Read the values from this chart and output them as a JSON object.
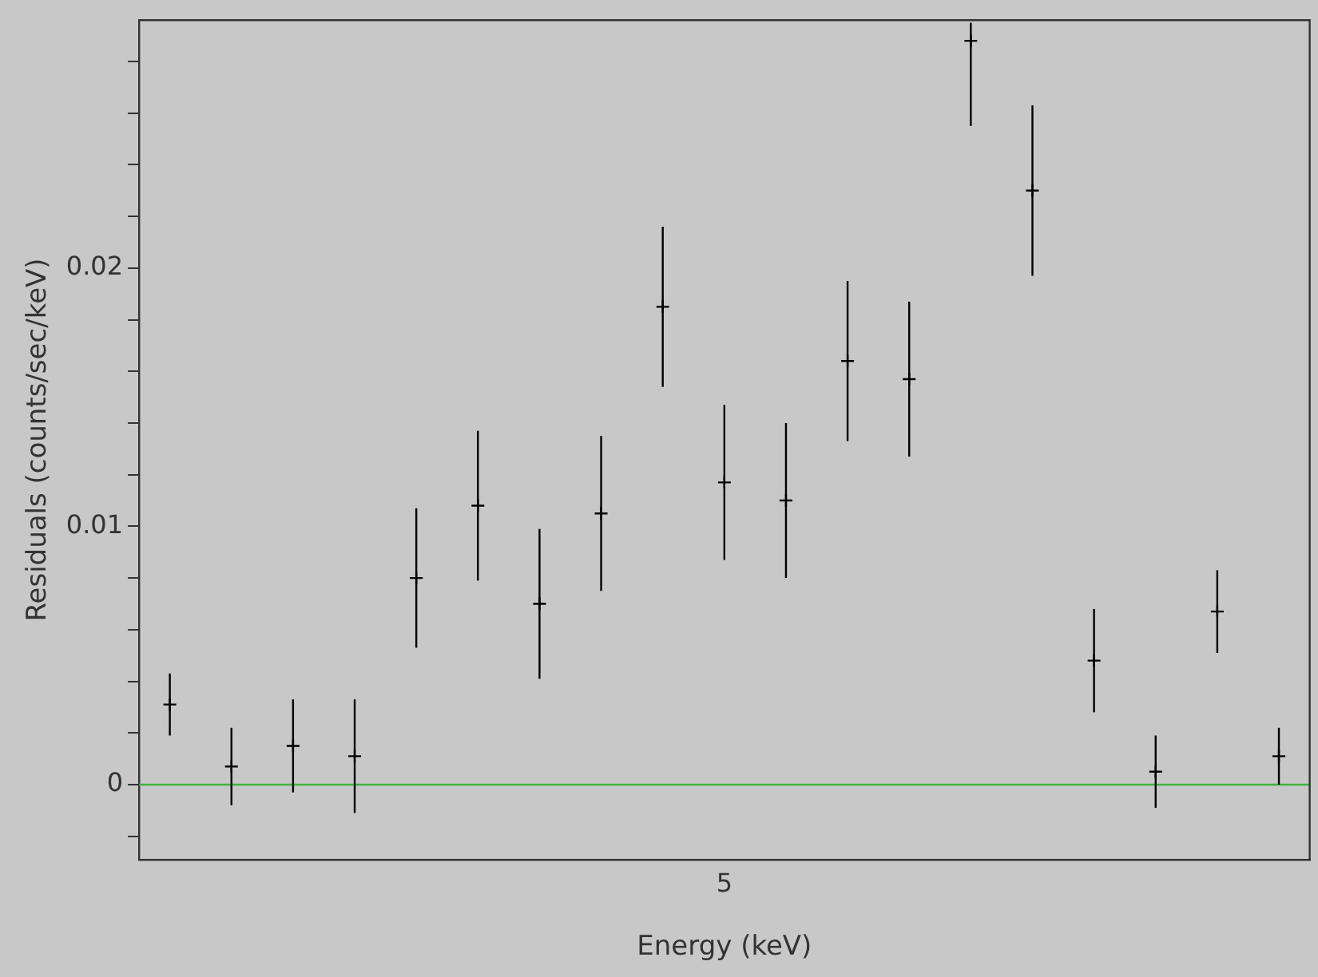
{
  "chart_data": {
    "type": "scatter",
    "xlabel": "Energy (keV)",
    "ylabel": "Residuals (counts/sec/keV)",
    "marker": "cross",
    "grid": false,
    "legend": false,
    "annotations": [
      "5"
    ],
    "categories": [
      null,
      null,
      null,
      null,
      null,
      null,
      null,
      null,
      null,
      null,
      null,
      null,
      null,
      null,
      null,
      null,
      null,
      null,
      null
    ],
    "ylim": [
      -0.0029,
      0.0296
    ],
    "yticks": [
      {
        "value": -0.002,
        "label": null
      },
      0,
      {
        "value": 0.002,
        "label": null
      },
      {
        "value": 0.004,
        "label": null
      },
      {
        "value": 0.006,
        "label": null
      },
      {
        "value": 0.008,
        "label": null
      },
      0.01,
      {
        "value": 0.012,
        "label": null
      },
      {
        "value": 0.014,
        "label": null
      },
      {
        "value": 0.016,
        "label": null
      },
      {
        "value": 0.018,
        "label": null
      },
      0.02,
      {
        "value": 0.022,
        "label": null
      },
      {
        "value": 0.024,
        "label": null
      },
      {
        "value": 0.026,
        "label": null
      },
      {
        "value": 0.028,
        "label": null
      }
    ],
    "ref_lines": [
      {
        "axis": "y",
        "value": 0,
        "color": "#3cb43c"
      }
    ],
    "series": [
      {
        "color": "#000000",
        "values": [
          0.0031,
          0.0007,
          0.0015,
          0.0011,
          0.008,
          0.0108,
          0.007,
          0.0105,
          0.0185,
          0.0117,
          0.011,
          0.0164,
          0.0157,
          0.0288,
          0.023,
          0.0048,
          0.0005,
          0.0067,
          0.0011
        ],
        "errors": [
          0.0012,
          0.0015,
          0.0018,
          0.0022,
          0.0027,
          0.0029,
          0.0029,
          0.003,
          0.0031,
          0.003,
          0.003,
          0.0031,
          0.003,
          [
            0.0255,
            0.0295
          ],
          0.0033,
          0.002,
          0.0014,
          0.0016,
          0.0011
        ]
      }
    ]
  }
}
